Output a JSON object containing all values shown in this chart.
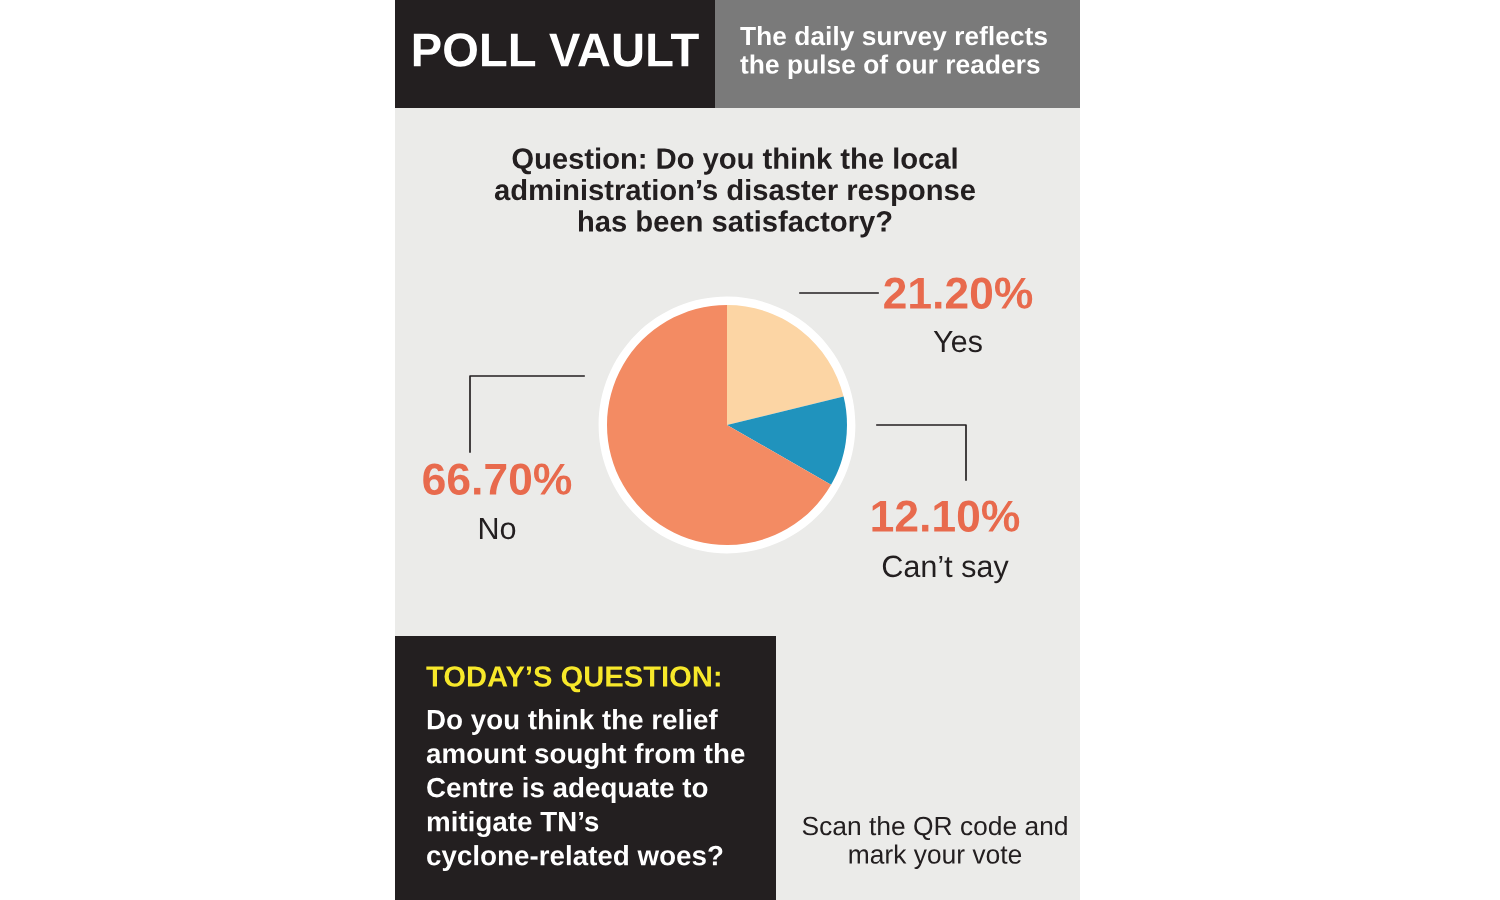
{
  "chart_data": {
    "type": "pie",
    "title": "POLL VAULT",
    "subtitle": "The daily survey reflects the pulse of our readers",
    "categories": [
      "Yes",
      "Can’t say",
      "No"
    ],
    "values": [
      21.2,
      12.1,
      66.7
    ],
    "value_labels": [
      "21.20%",
      "12.10%",
      "66.70%"
    ],
    "colors": [
      "#fcd5a4",
      "#2093bd",
      "#f38b63"
    ],
    "legend": false,
    "annotations": [
      "Question: Do you think the local administration’s disaster response has been satisfactory?",
      "TODAY’S QUESTION:",
      "Do you think the relief amount sought from the Centre is adequate to mitigate TN’s cyclone-related woes?",
      "Scan the QR code and mark your vote"
    ]
  }
}
